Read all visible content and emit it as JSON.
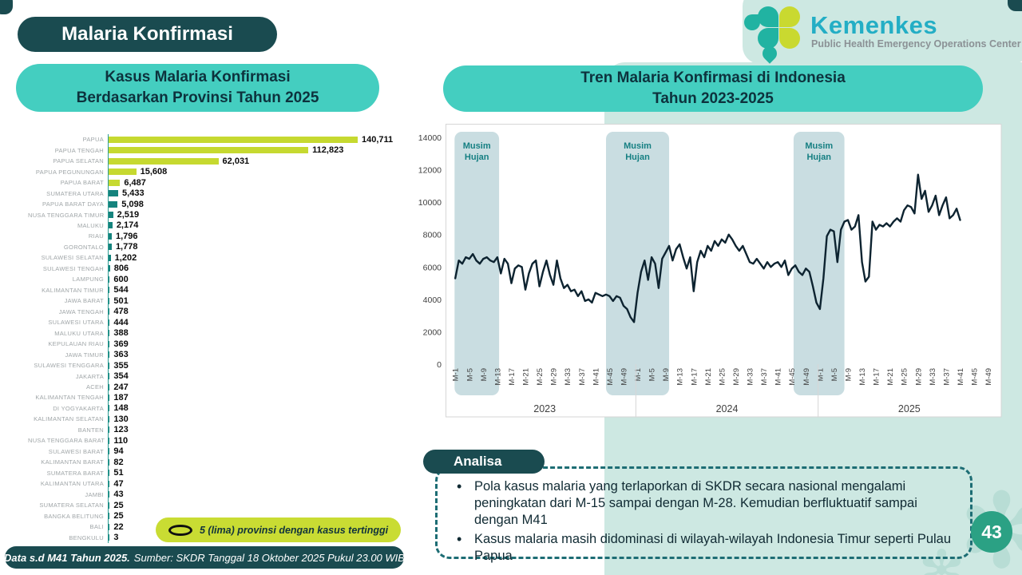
{
  "page": {
    "title": "Malaria Konfirmasi",
    "page_number": "43"
  },
  "logo": {
    "name": "Kemenkes",
    "subtitle": "Public Health Emergency Operations Center"
  },
  "left_panel": {
    "header_line1": "Kasus Malaria Konfirmasi",
    "header_line2": "Berdasarkan Provinsi Tahun 2025",
    "legend": "5 (lima) provinsi dengan kasus tertinggi"
  },
  "right_panel": {
    "header_line1": "Tren Malaria Konfirmasi di Indonesia",
    "header_line2": "Tahun 2023-2025",
    "band_label_line1": "Musim",
    "band_label_line2": "Hujan"
  },
  "analisa": {
    "title": "Analisa",
    "bullets": [
      "Pola kasus malaria yang terlaporkan di SKDR secara nasional mengalami peningkatan dari M-15 sampai dengan M-28. Kemudian berfluktuatif sampai dengan M41",
      "Kasus malaria masih didominasi di wilayah-wilayah Indonesia Timur seperti Pulau Papua"
    ]
  },
  "footer": {
    "bold": "Data s.d M41 Tahun 2025.",
    "rest": "Sumber: SKDR Tanggal 18 Oktober 2025 Pukul 23.00 WIB"
  },
  "colors": {
    "dark_teal": "#1a4b50",
    "header_teal": "#44cec0",
    "mint_bg": "#cde8e2",
    "bar_teal": "#15837d",
    "bar_lime": "#c6d930",
    "line": "#0d2330",
    "band_fill": "#c9dde1",
    "band_text": "#157f82",
    "axis_text": "#404040",
    "kemenkes_cyan": "#23aec5",
    "page_circle": "#2ba184"
  },
  "chart_data": [
    {
      "type": "bar",
      "orientation": "horizontal",
      "title": "Kasus Malaria Konfirmasi Berdasarkan Provinsi Tahun 2025",
      "categories": [
        "PAPUA",
        "PAPUA TENGAH",
        "PAPUA SELATAN",
        "PAPUA PEGUNUNGAN",
        "PAPUA BARAT",
        "SUMATERA UTARA",
        "PAPUA BARAT DAYA",
        "NUSA TENGGARA TIMUR",
        "MALUKU",
        "RIAU",
        "GORONTALO",
        "SULAWESI SELATAN",
        "SULAWESI TENGAH",
        "LAMPUNG",
        "KALIMANTAN TIMUR",
        "JAWA BARAT",
        "JAWA TENGAH",
        "SULAWESI UTARA",
        "MALUKU UTARA",
        "KEPULAUAN RIAU",
        "JAWA TIMUR",
        "SULAWESI TENGGARA",
        "JAKARTA",
        "ACEH",
        "KALIMANTAN TENGAH",
        "DI YOGYAKARTA",
        "KALIMANTAN SELATAN",
        "BANTEN",
        "NUSA TENGGARA BARAT",
        "SULAWESI BARAT",
        "KALIMANTAN BARAT",
        "SUMATERA BARAT",
        "KALIMANTAN UTARA",
        "JAMBI",
        "SUMATERA SELATAN",
        "BANGKA BELITUNG",
        "BALI",
        "BENGKULU"
      ],
      "values": [
        140711,
        112823,
        62031,
        15608,
        6487,
        5433,
        5098,
        2519,
        2174,
        1796,
        1778,
        1202,
        806,
        600,
        544,
        501,
        478,
        444,
        388,
        369,
        363,
        355,
        354,
        247,
        187,
        148,
        130,
        123,
        110,
        94,
        82,
        51,
        47,
        43,
        25,
        25,
        22,
        3
      ],
      "highlight_top_n": 5,
      "xlim": [
        0,
        145000
      ],
      "legend": "5 (lima) provinsi dengan kasus tertinggi"
    },
    {
      "type": "line",
      "title": "Tren Malaria Konfirmasi di Indonesia Tahun 2023-2025",
      "x_unit": "minggu epidemiologi (M)",
      "years": [
        "2023",
        "2024",
        "2025"
      ],
      "weeks_per_year": 52,
      "tick_labels": [
        "M-1",
        "M-5",
        "M-9",
        "M-13",
        "M-17",
        "M-21",
        "M-25",
        "M-29",
        "M-33",
        "M-37",
        "M-41",
        "M-45",
        "M-49"
      ],
      "ylim": [
        0,
        14000
      ],
      "ytick_step": 2000,
      "grid": false,
      "shaded_bands": [
        {
          "label": "Musim Hujan",
          "start_week_index": 0.3,
          "end_week_index": 13
        },
        {
          "label": "Musim Hujan",
          "start_week_index": 43.5,
          "end_week_index": 61.5
        },
        {
          "label": "Musim Hujan",
          "start_week_index": 97,
          "end_week_index": 111.5
        }
      ],
      "series": [
        {
          "name": "Kasus malaria konfirmasi per minggu",
          "values": [
            5300,
            6400,
            6200,
            6600,
            6500,
            6800,
            6400,
            6200,
            6500,
            6600,
            6400,
            6300,
            6600,
            5600,
            6500,
            6200,
            5000,
            5900,
            6100,
            6000,
            4600,
            5600,
            6200,
            6400,
            4800,
            5700,
            6400,
            5500,
            4900,
            6400,
            5300,
            4700,
            4900,
            4500,
            4600,
            4200,
            4500,
            3900,
            4000,
            3800,
            4400,
            4300,
            4200,
            4300,
            4200,
            3900,
            4200,
            4100,
            3600,
            3400,
            2900,
            2600,
            4400,
            5700,
            6400,
            5200,
            6600,
            6200,
            4700,
            6500,
            6900,
            7300,
            6400,
            7100,
            7400,
            6600,
            5900,
            6600,
            4500,
            6300,
            7000,
            6600,
            7300,
            7000,
            7600,
            7300,
            7700,
            7500,
            8000,
            7700,
            7300,
            7000,
            7300,
            6800,
            6300,
            6200,
            6500,
            6200,
            5900,
            6300,
            6000,
            6200,
            6300,
            6000,
            6400,
            5500,
            5900,
            6100,
            5700,
            5500,
            5900,
            5700,
            4800,
            3800,
            3400,
            5300,
            7900,
            8300,
            8200,
            6300,
            8300,
            8800,
            8900,
            8300,
            8500,
            9200,
            6300,
            5100,
            5400,
            8800,
            8300,
            8600,
            8500,
            8700,
            8500,
            8800,
            9000,
            8800,
            9500,
            9800,
            9700,
            9300,
            11700,
            10200,
            10700,
            9400,
            9800,
            10400,
            9200,
            9800,
            10300,
            9000,
            9200,
            9600,
            8900
          ]
        }
      ]
    }
  ]
}
